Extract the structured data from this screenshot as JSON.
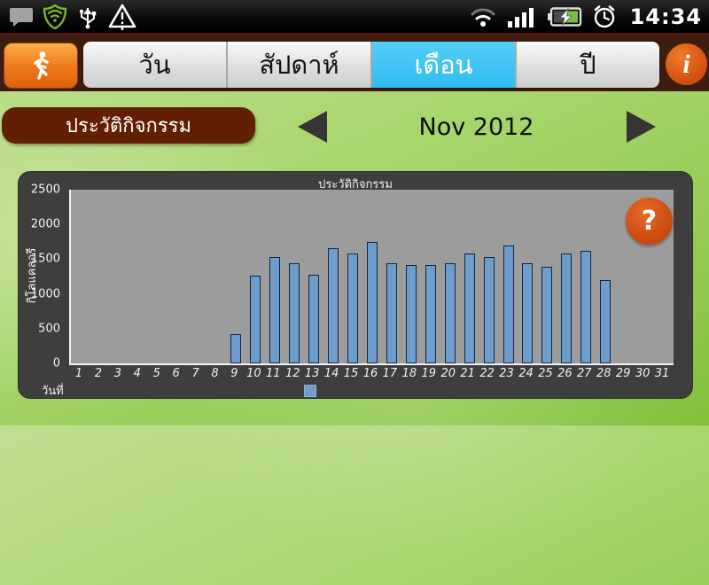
{
  "status_bar": {
    "time": "14:34",
    "icons_left": [
      "chat",
      "security-shield",
      "usb",
      "warning"
    ],
    "icons_right": [
      "wifi",
      "signal-strength",
      "battery-charging",
      "alarm-clock"
    ]
  },
  "toolbar": {
    "tabs": [
      {
        "label": "วัน",
        "selected": false
      },
      {
        "label": "สัปดาห์",
        "selected": false
      },
      {
        "label": "เดือน",
        "selected": true
      },
      {
        "label": "ปี",
        "selected": false
      }
    ],
    "info_label": "i",
    "runner_icon": "running-person"
  },
  "history_nav": {
    "history_button": "ประวัติกิจกรรม",
    "period": "Nov 2012"
  },
  "help_label": "?",
  "chart_data": {
    "type": "bar",
    "title": "ประวัติกิจกรรม",
    "xlabel": "วันที่",
    "ylabel": "กิโลแคลอรี",
    "ylim": [
      0,
      2500
    ],
    "yticks": [
      0,
      500,
      1000,
      1500,
      2000,
      2500
    ],
    "grid": true,
    "legend_position": "bottom",
    "categories": [
      1,
      2,
      3,
      4,
      5,
      6,
      7,
      8,
      9,
      10,
      11,
      12,
      13,
      14,
      15,
      16,
      17,
      18,
      19,
      20,
      21,
      22,
      23,
      24,
      25,
      26,
      27,
      28,
      29,
      30,
      31
    ],
    "values": [
      null,
      null,
      null,
      null,
      null,
      null,
      null,
      null,
      400,
      1240,
      1500,
      1410,
      1250,
      1630,
      1550,
      1720,
      1420,
      1390,
      1390,
      1410,
      1560,
      1500,
      1670,
      1420,
      1370,
      1560,
      1600,
      1170,
      null,
      null,
      null
    ],
    "bar_color": "#6c9dcc",
    "bar_border_color": "#16243a",
    "plot_bg": "#9c9c9c",
    "panel_bg": "#3e3e3e"
  },
  "colors": {
    "accent_blue": "#2fbcf0",
    "accent_orange": "#e05f0a",
    "maroon_button": "#611f04",
    "background_green": "#8cc63f",
    "help_orange": "#c8480f"
  }
}
